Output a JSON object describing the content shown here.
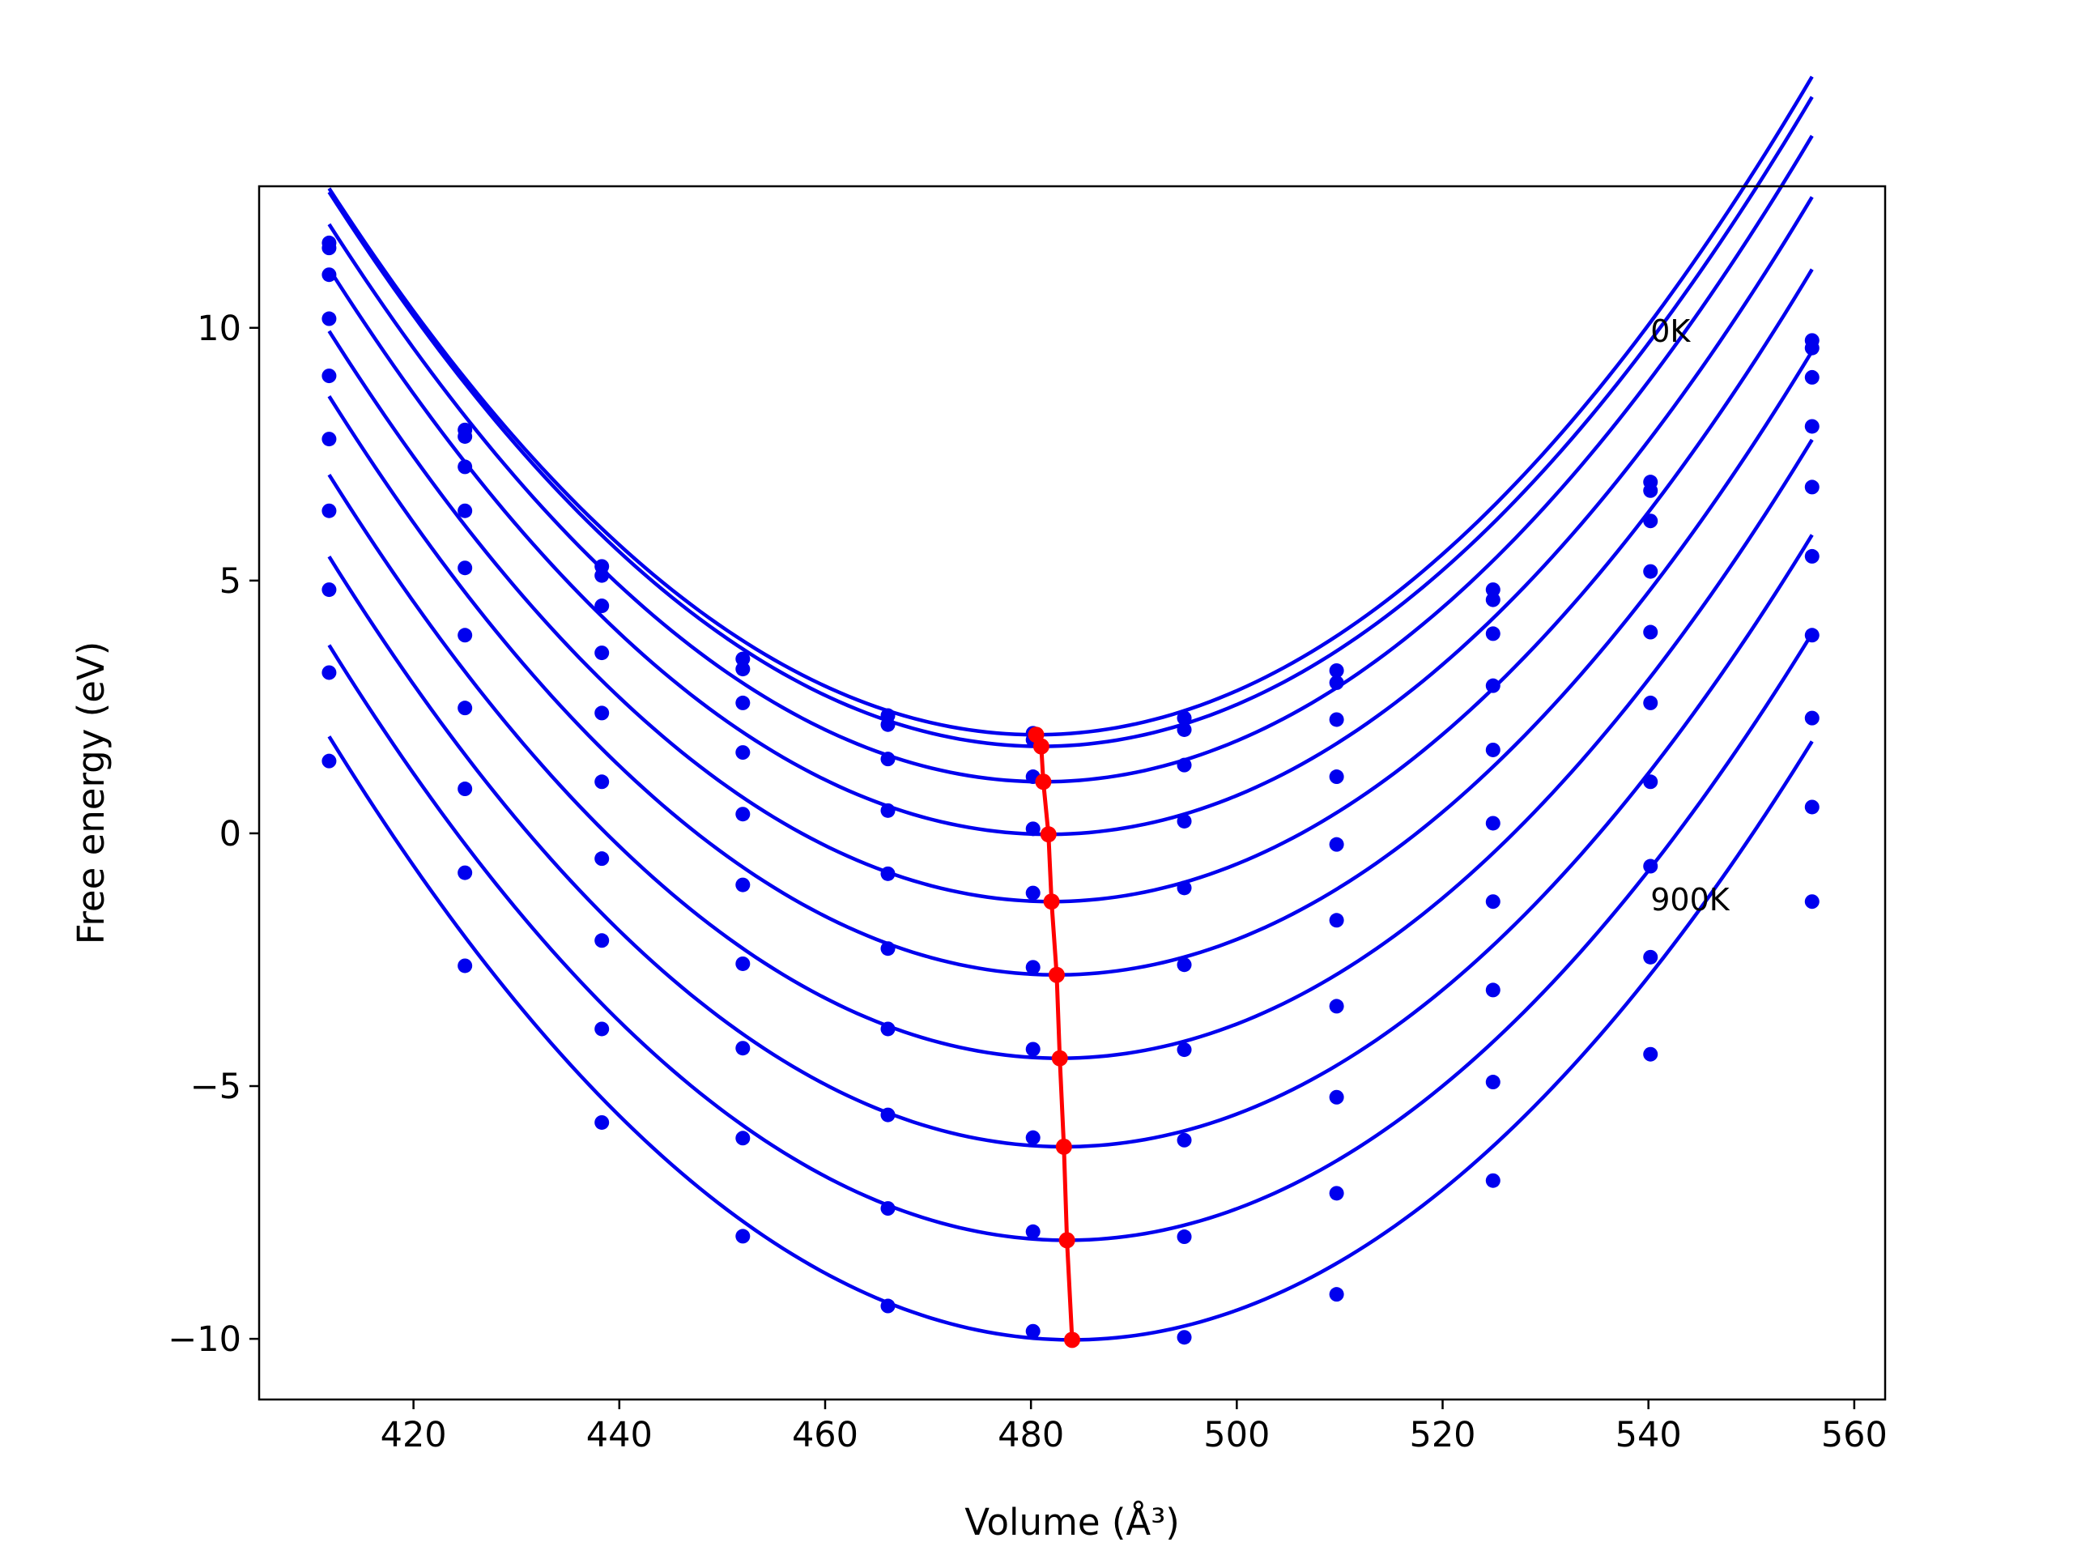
{
  "chart_data": {
    "type": "line",
    "xlabel": "Volume (Å³)",
    "ylabel": "Free energy (eV)",
    "xlim": [
      405,
      563
    ],
    "ylim": [
      -11.2,
      12.8
    ],
    "xticks": [
      420,
      440,
      460,
      480,
      500,
      520,
      540,
      560
    ],
    "yticks": [
      -10,
      -5,
      0,
      5,
      10
    ],
    "grid": false,
    "annotations": [
      {
        "text": "0K",
        "x": 540.2,
        "y": 9.95
      },
      {
        "text": "900K",
        "x": 540.2,
        "y": -1.3
      }
    ],
    "colors": {
      "curves": "#0000ee",
      "points": "#0000ee",
      "minima": "#ff0000"
    },
    "volumes": [
      411.8,
      425.0,
      438.3,
      452.0,
      466.1,
      480.2,
      494.9,
      509.7,
      524.9,
      540.2,
      555.9
    ],
    "series": [
      {
        "values": [
          11.68,
          7.98,
          5.28,
          3.45,
          2.33,
          1.98,
          2.28,
          3.22,
          4.82,
          6.95,
          9.75
        ],
        "fit": {
          "a": 0.00229,
          "v0": 480.5,
          "e0": 1.95
        }
      },
      {
        "values": [
          11.58,
          7.85,
          5.1,
          3.25,
          2.15,
          1.85,
          2.05,
          2.98,
          4.62,
          6.78,
          9.6
        ],
        "fit": {
          "a": 0.00229,
          "v0": 481.0,
          "e0": 1.72
        }
      },
      {
        "values": [
          11.05,
          7.25,
          4.5,
          2.58,
          1.47,
          1.12,
          1.35,
          2.25,
          3.95,
          6.18,
          9.02
        ],
        "fit": {
          "a": 0.00229,
          "v0": 481.2,
          "e0": 1.02
        }
      },
      {
        "values": [
          10.18,
          6.38,
          3.57,
          1.6,
          0.45,
          0.09,
          0.24,
          1.12,
          2.92,
          5.18,
          8.05
        ],
        "fit": {
          "a": 0.00229,
          "v0": 481.7,
          "e0": -0.02
        }
      },
      {
        "values": [
          9.05,
          5.25,
          2.38,
          0.38,
          -0.8,
          -1.18,
          -1.08,
          -0.22,
          1.65,
          3.98,
          6.85
        ],
        "fit": {
          "a": 0.00229,
          "v0": 482.0,
          "e0": -1.35
        }
      },
      {
        "values": [
          7.8,
          3.92,
          1.02,
          -1.02,
          -2.28,
          -2.65,
          -2.6,
          -1.72,
          0.2,
          2.58,
          5.48
        ],
        "fit": {
          "a": 0.00229,
          "v0": 482.5,
          "e0": -2.8
        }
      },
      {
        "values": [
          6.38,
          2.48,
          -0.5,
          -2.58,
          -3.87,
          -4.27,
          -4.28,
          -3.42,
          -1.35,
          1.02,
          3.92
        ],
        "fit": {
          "a": 0.00229,
          "v0": 482.8,
          "e0": -4.45
        }
      },
      {
        "values": [
          4.82,
          0.88,
          -2.12,
          -4.25,
          -5.57,
          -6.02,
          -6.07,
          -5.22,
          -3.1,
          -0.65,
          2.28
        ],
        "fit": {
          "a": 0.00229,
          "v0": 483.2,
          "e0": -6.2
        }
      },
      {
        "values": [
          3.18,
          -0.78,
          -3.87,
          -6.03,
          -7.42,
          -7.88,
          -7.98,
          -7.12,
          -4.92,
          -2.45,
          0.52
        ],
        "fit": {
          "a": 0.00229,
          "v0": 483.5,
          "e0": -8.05
        }
      },
      {
        "values": [
          1.43,
          -2.62,
          -5.72,
          -7.97,
          -9.35,
          -9.85,
          -9.97,
          -9.12,
          -6.87,
          -4.37,
          -1.35
        ],
        "fit": {
          "a": 0.00229,
          "v0": 484.0,
          "e0": -10.02
        }
      }
    ],
    "minima_line": {
      "x": [
        480.5,
        481.0,
        481.2,
        481.7,
        482.0,
        482.5,
        482.8,
        483.2,
        483.5,
        484.0
      ],
      "y": [
        1.95,
        1.72,
        1.02,
        -0.02,
        -1.35,
        -2.8,
        -4.45,
        -6.2,
        -8.05,
        -10.02
      ]
    }
  }
}
